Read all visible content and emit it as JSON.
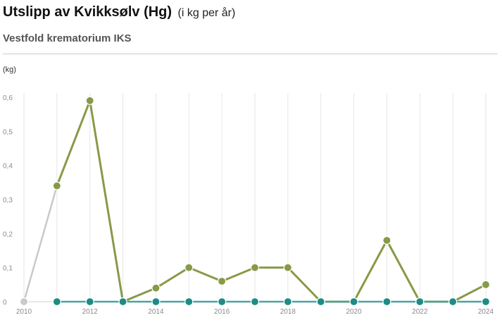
{
  "header": {
    "title": "Utslipp av Kvikksølv (Hg)",
    "title_unit": "(i kg per år)",
    "subtitle": "Vestfold krematorium IKS"
  },
  "chart_data": {
    "type": "line",
    "ylabel": "(kg)",
    "ylim": [
      0,
      0.6
    ],
    "yticks": [
      "0",
      "0,1",
      "0,2",
      "0,3",
      "0,4",
      "0,5",
      "0,6"
    ],
    "xlim": [
      2010,
      2024
    ],
    "xticks": [
      "2010",
      "2012",
      "2014",
      "2016",
      "2018",
      "2020",
      "2022",
      "2024"
    ],
    "grid": true,
    "legend": "none",
    "series": [
      {
        "color": "#c9c9c9",
        "marker_color": "#c9c9c9",
        "x": [
          2010,
          2011
        ],
        "y": [
          0,
          0.34
        ]
      },
      {
        "color": "#879a47",
        "marker_color": "#879a47",
        "x": [
          2011,
          2012,
          2013,
          2014,
          2015,
          2016,
          2017,
          2018,
          2019,
          2020,
          2021,
          2022,
          2023,
          2024
        ],
        "y": [
          0.34,
          0.59,
          0,
          0.04,
          0.1,
          0.06,
          0.1,
          0.1,
          0,
          0,
          0.18,
          0,
          0,
          0.05
        ]
      },
      {
        "color": "#4aa3a0",
        "marker_color": "#1e8c86",
        "x": [
          2011,
          2012,
          2013,
          2014,
          2015,
          2016,
          2017,
          2018,
          2019,
          2020,
          2021,
          2022,
          2023,
          2024
        ],
        "y": [
          0,
          0,
          0,
          0,
          0,
          0,
          0,
          0,
          0,
          0,
          0,
          0,
          0,
          0
        ]
      }
    ]
  }
}
